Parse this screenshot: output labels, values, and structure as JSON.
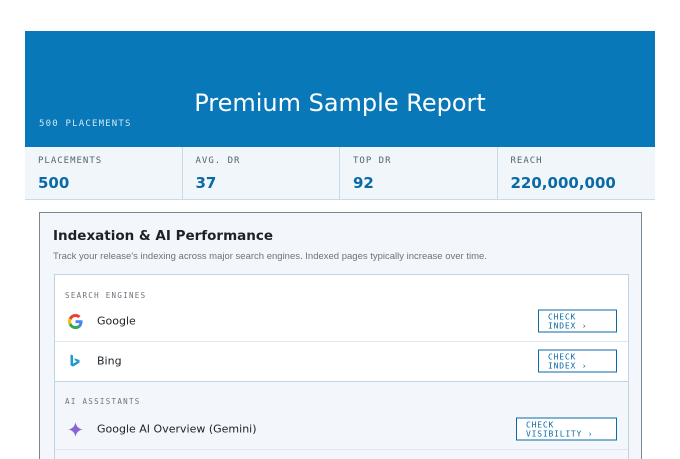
{
  "header": {
    "title": "Premium Sample Report",
    "subtitle": "500 PLACEMENTS",
    "background": "#0878b8"
  },
  "stats": [
    {
      "label": "PLACEMENTS",
      "value": "500"
    },
    {
      "label": "AVG. DR",
      "value": "37"
    },
    {
      "label": "TOP DR",
      "value": "92"
    },
    {
      "label": "REACH",
      "value": "220,000,000"
    }
  ],
  "panel": {
    "title": "Indexation & AI Performance",
    "description": "Track your release's indexing across major search engines. Indexed pages typically increase over time."
  },
  "search_engines": {
    "label": "SEARCH ENGINES",
    "items": [
      {
        "name": "Google",
        "icon": "google-icon",
        "button": "CHECK INDEX ›"
      },
      {
        "name": "Bing",
        "icon": "bing-icon",
        "button": "CHECK INDEX ›"
      }
    ]
  },
  "ai_assistants": {
    "label": "AI ASSISTANTS",
    "items": [
      {
        "name": "Google AI Overview (Gemini)",
        "icon": "gemini-sparkle-icon",
        "button": "CHECK VISIBILITY ›"
      }
    ]
  },
  "colors": {
    "accent": "#0a6aa6",
    "google_blue": "#4285f4",
    "google_red": "#ea4335",
    "google_yellow": "#fbbc05",
    "google_green": "#34a853",
    "bing": "#1f9ad6",
    "gemini": "#8b63d6"
  }
}
